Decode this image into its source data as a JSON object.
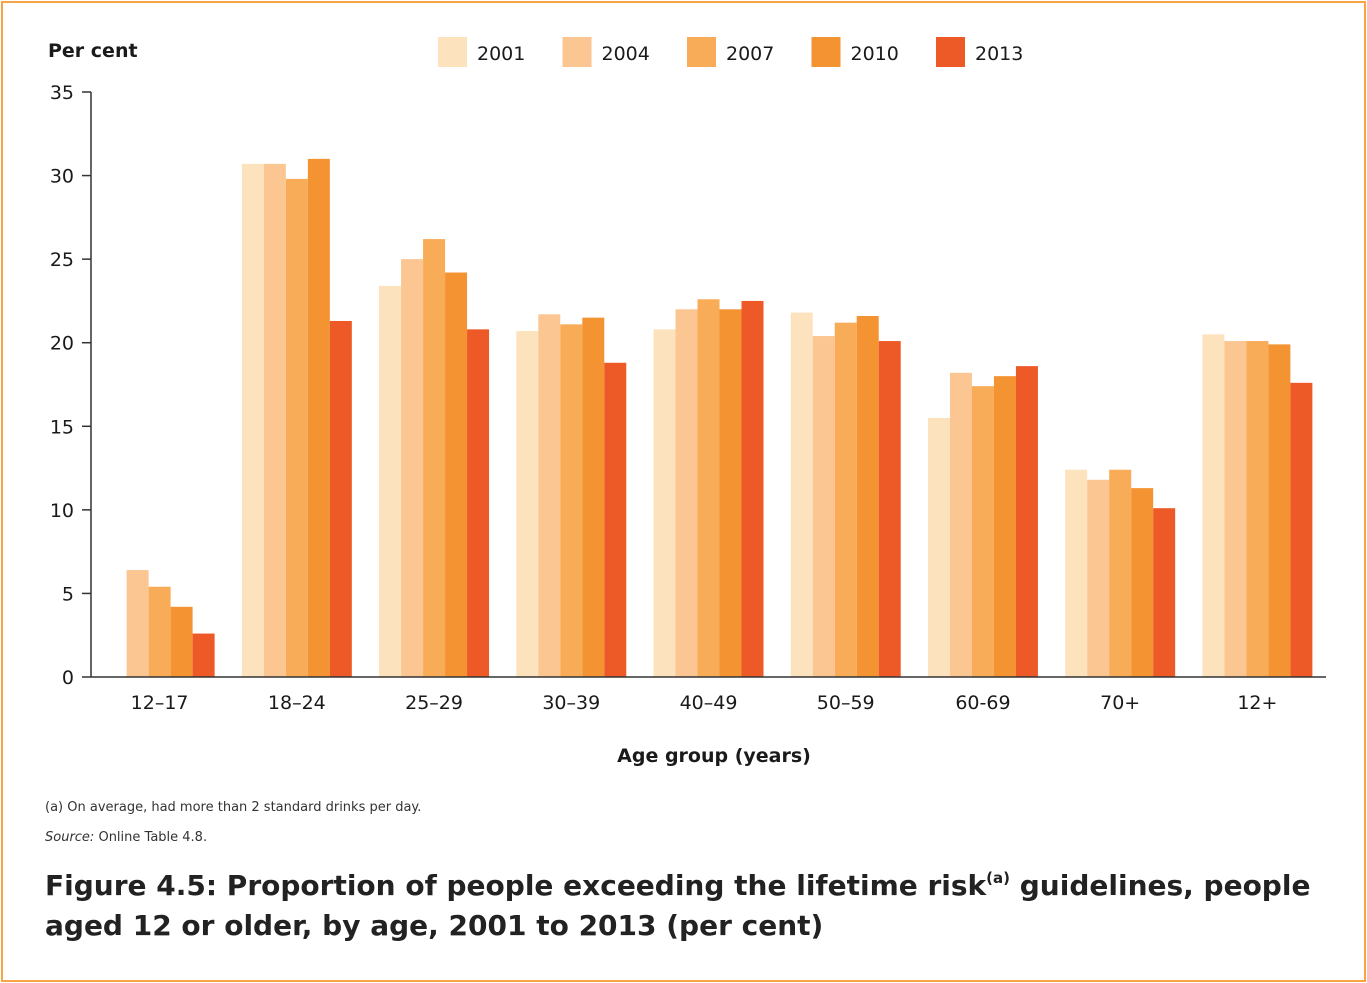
{
  "chart_data": {
    "type": "bar",
    "ylabel": "Per cent",
    "xlabel": "Age group (years)",
    "ylim": [
      0,
      35
    ],
    "yticks": [
      0,
      5,
      10,
      15,
      20,
      25,
      30,
      35
    ],
    "legend_position": "top",
    "categories": [
      "12–17",
      "18–24",
      "25–29",
      "30–39",
      "40–49",
      "50–59",
      "60-69",
      "70+",
      "12+"
    ],
    "series": [
      {
        "name": "2001",
        "color": "#fde3bd",
        "values": [
          null,
          30.7,
          23.4,
          20.7,
          20.8,
          21.8,
          15.5,
          12.4,
          20.5
        ]
      },
      {
        "name": "2004",
        "color": "#fcc692",
        "values": [
          6.4,
          30.7,
          25.0,
          21.7,
          22.0,
          20.4,
          18.2,
          11.8,
          20.1
        ]
      },
      {
        "name": "2007",
        "color": "#f9ac57",
        "values": [
          5.4,
          29.8,
          26.2,
          21.1,
          22.6,
          21.2,
          17.4,
          12.4,
          20.1
        ]
      },
      {
        "name": "2010",
        "color": "#f49332",
        "values": [
          4.2,
          31.0,
          24.2,
          21.5,
          22.0,
          21.6,
          18.0,
          11.3,
          19.9
        ]
      },
      {
        "name": "2013",
        "color": "#ee5a27",
        "values": [
          2.6,
          21.3,
          20.8,
          18.8,
          22.5,
          20.1,
          18.6,
          10.1,
          17.6
        ]
      }
    ]
  },
  "footnote": "(a) On average, had more than 2 standard drinks per day.",
  "source_label": "Source:",
  "source_text": " Online Table 4.8.",
  "caption_main": "Figure 4.5: Proportion of people exceeding the lifetime risk",
  "caption_sup": "(a)",
  "caption_rest": " guidelines, people aged 12 or older, by age, 2001 to 2013 (per cent)",
  "frame_color": "#f6a444"
}
